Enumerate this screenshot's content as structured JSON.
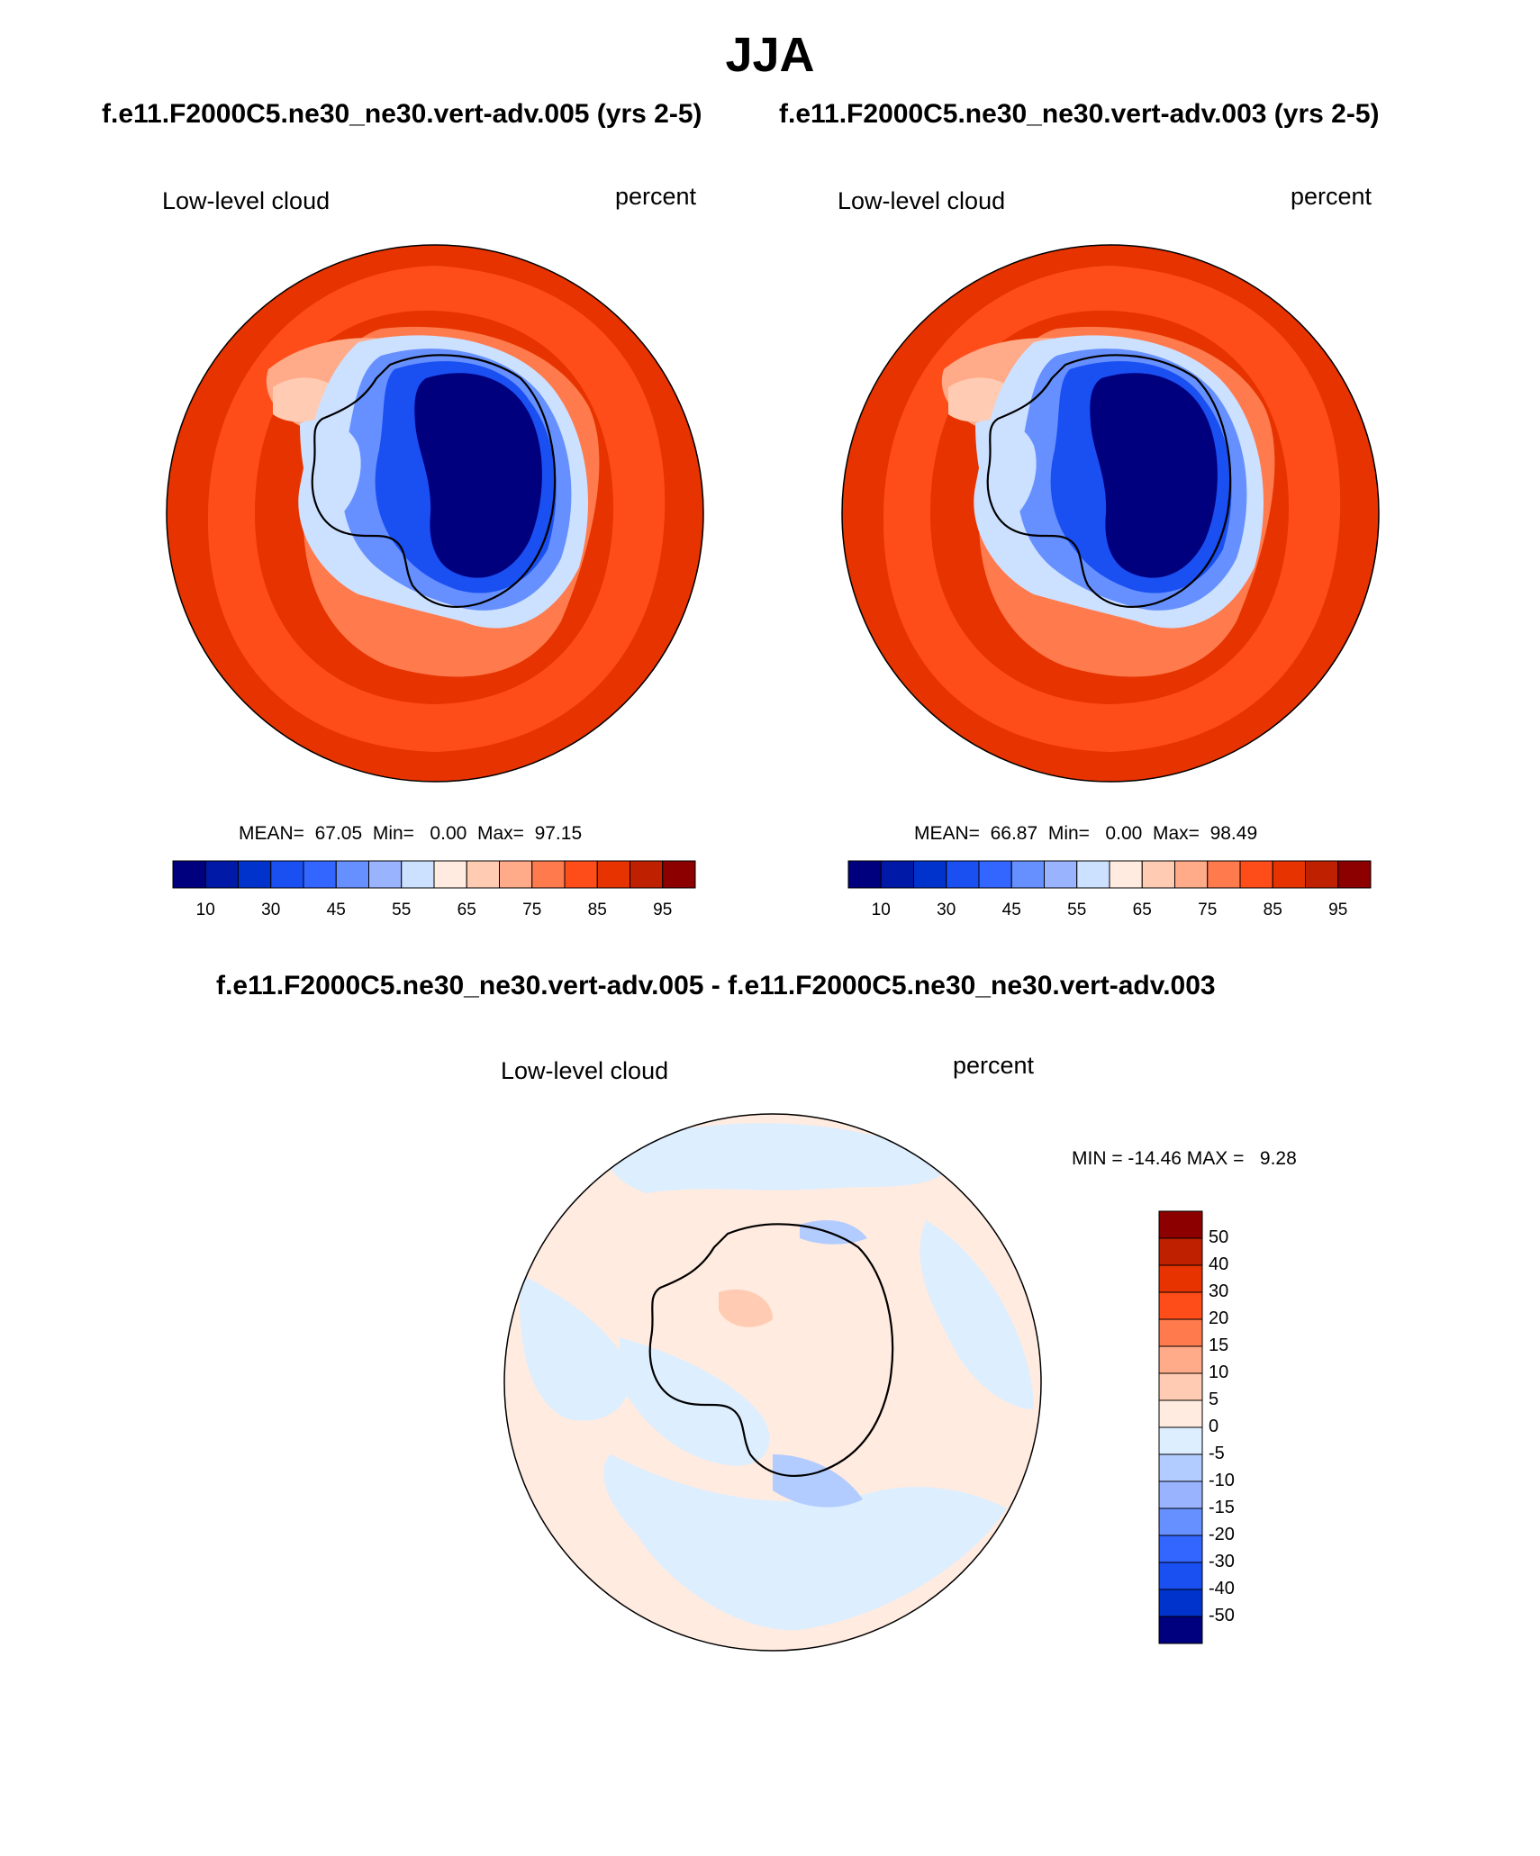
{
  "figure": {
    "title": "JJA",
    "case1_title": "f.e11.F2000C5.ne30_ne30.vert-adv.005 (yrs 2-5)",
    "case2_title": "f.e11.F2000C5.ne30_ne30.vert-adv.003 (yrs 2-5)",
    "diff_title": "f.e11.F2000C5.ne30_ne30.vert-adv.005 - f.e11.F2000C5.ne30_ne30.vert-adv.003"
  },
  "panels": {
    "p1": {
      "variable": "Low-level cloud",
      "units": "percent",
      "stats": "MEAN=  67.05  Min=   0.00  Max=  97.15"
    },
    "p2": {
      "variable": "Low-level cloud",
      "units": "percent",
      "stats": "MEAN=  66.87  Min=   0.00  Max=  98.49"
    },
    "p3": {
      "variable": "Low-level cloud",
      "units": "percent",
      "stats": "MIN = -14.46 MAX =   9.28"
    }
  },
  "colorbar_abs": {
    "colors": [
      "#00007f",
      "#0019a6",
      "#0033cc",
      "#1a4ff2",
      "#3366ff",
      "#6690ff",
      "#99b3ff",
      "#cce0ff",
      "#ffebe0",
      "#ffccb3",
      "#ffaa88",
      "#ff7a4d",
      "#ff4d1a",
      "#e63300",
      "#bf2000",
      "#8c0000"
    ],
    "ticks": [
      "10",
      "30",
      "45",
      "55",
      "65",
      "75",
      "85",
      "95"
    ]
  },
  "colorbar_diff": {
    "colors": [
      "#8c0000",
      "#bf2000",
      "#e63300",
      "#ff4d1a",
      "#ff7a4d",
      "#ffaa88",
      "#ffccb3",
      "#ffebe0",
      "#ddeeff",
      "#b3ccff",
      "#99b3ff",
      "#6690ff",
      "#3366ff",
      "#1a4ff2",
      "#0033cc",
      "#00007f"
    ],
    "ticks": [
      "50",
      "40",
      "30",
      "20",
      "15",
      "10",
      "5",
      "0",
      "-5",
      "-10",
      "-15",
      "-20",
      "-30",
      "-40",
      "-50"
    ]
  },
  "map_colors": {
    "ocean_high": "#e63300",
    "ocean_mid": "#ff4d1a",
    "ocean_low": "#ff7a4d",
    "ocean_light": "#ffaa88",
    "ocean_pale": "#ffccb3",
    "ice_pale": "#cce0ff",
    "ice_mid": "#6690ff",
    "ice_deep": "#1a4ff2",
    "plateau": "#00007f",
    "diff_pos": "#ffebe0",
    "diff_neg": "#ddeeff",
    "diff_neg2": "#b3ccff",
    "diff_pos2": "#ffccb3"
  }
}
